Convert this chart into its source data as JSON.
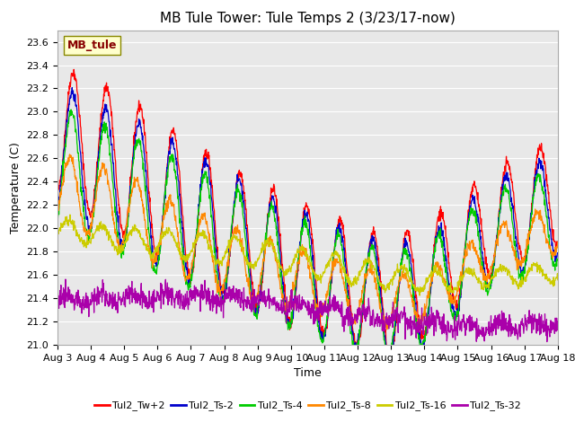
{
  "title": "MB Tule Tower: Tule Temps 2 (3/23/17-now)",
  "xlabel": "Time",
  "ylabel": "Temperature (C)",
  "ylim": [
    21.0,
    23.7
  ],
  "xlim": [
    0,
    15
  ],
  "x_tick_labels": [
    "Aug 3",
    "Aug 4",
    "Aug 5",
    "Aug 6",
    "Aug 7",
    "Aug 8",
    "Aug 9",
    "Aug 10",
    "Aug 11",
    "Aug 12",
    "Aug 13",
    "Aug 14",
    "Aug 15",
    "Aug 16",
    "Aug 17",
    "Aug 18"
  ],
  "x_tick_positions": [
    0,
    1,
    2,
    3,
    4,
    5,
    6,
    7,
    8,
    9,
    10,
    11,
    12,
    13,
    14,
    15
  ],
  "y_ticks": [
    21.0,
    21.2,
    21.4,
    21.6,
    21.8,
    22.0,
    22.2,
    22.4,
    22.6,
    22.8,
    23.0,
    23.2,
    23.4,
    23.6
  ],
  "legend_label": "MB_tule",
  "series_labels": [
    "Tul2_Tw+2",
    "Tul2_Ts-2",
    "Tul2_Ts-4",
    "Tul2_Ts-8",
    "Tul2_Ts-16",
    "Tul2_Ts-32"
  ],
  "series_colors": [
    "#ff0000",
    "#0000cc",
    "#00cc00",
    "#ff8800",
    "#cccc00",
    "#aa00aa"
  ],
  "plot_bg_color": "#e8e8e8",
  "title_fontsize": 11,
  "axis_fontsize": 9,
  "tick_fontsize": 8
}
